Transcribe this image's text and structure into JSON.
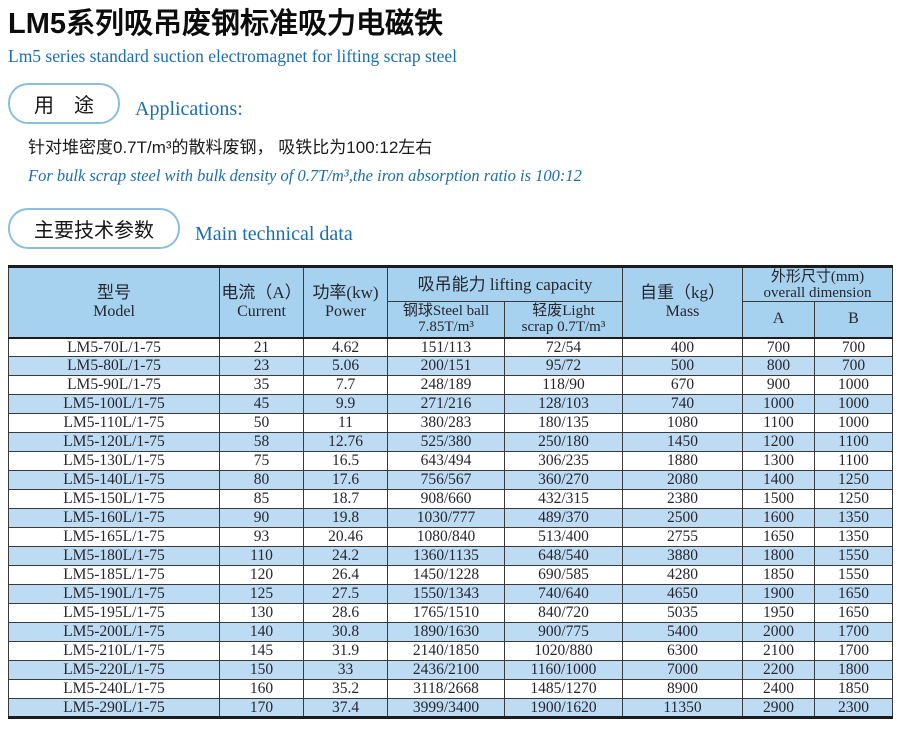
{
  "colors": {
    "accent_blue": "#1a6db6",
    "header_blue": "#a6d2ef",
    "row_alt_blue": "#bddcf4",
    "pill_border": "#8abfe0",
    "table_border": "#3a3a3a",
    "table_frame": "#1c1c1c",
    "text_dark": "#26262e"
  },
  "header": {
    "title_cn": "LM5系列吸吊废钢标准吸力电磁铁",
    "title_en": "Lm5 series standard suction electromagnet for lifting scrap steel"
  },
  "applications": {
    "pill_label": "用　途",
    "label_en": "Applications:",
    "body_cn": "针对堆密度0.7T/m³的散料废钢， 吸铁比为100:12左右",
    "body_en": "For bulk scrap steel with bulk density of 0.7T/m³,the iron absorption ratio is 100:12"
  },
  "tech_params": {
    "pill_label": "主要技术参数",
    "label_en": "Main technical data"
  },
  "table": {
    "header": {
      "model_cn": "型号",
      "model_en": "Model",
      "current_cn": "电流（A）",
      "current_en": "Current",
      "power_cn": "功率(kw)",
      "power_en": "Power",
      "lifting_capacity": "吸吊能力 lifting capacity",
      "steel_ball_line1": "钢球Steel ball",
      "steel_ball_line2": "7.85T/m³",
      "light_scrap_line1": "轻废Light",
      "light_scrap_line2": "scrap 0.7T/m³",
      "mass_cn": "自重（kg）",
      "mass_en": "Mass",
      "dimension_line1": "外形尺寸(mm)",
      "dimension_line2": "overall dimension",
      "col_a": "A",
      "col_b": "B"
    },
    "rows": [
      [
        "LM5-70L/1-75",
        "21",
        "4.62",
        "151/113",
        "72/54",
        "400",
        "700",
        "700"
      ],
      [
        "LM5-80L/1-75",
        "23",
        "5.06",
        "200/151",
        "95/72",
        "500",
        "800",
        "700"
      ],
      [
        "LM5-90L/1-75",
        "35",
        "7.7",
        "248/189",
        "118/90",
        "670",
        "900",
        "1000"
      ],
      [
        "LM5-100L/1-75",
        "45",
        "9.9",
        "271/216",
        "128/103",
        "740",
        "1000",
        "1000"
      ],
      [
        "LM5-110L/1-75",
        "50",
        "11",
        "380/283",
        "180/135",
        "1080",
        "1100",
        "1000"
      ],
      [
        "LM5-120L/1-75",
        "58",
        "12.76",
        "525/380",
        "250/180",
        "1450",
        "1200",
        "1100"
      ],
      [
        "LM5-130L/1-75",
        "75",
        "16.5",
        "643/494",
        "306/235",
        "1880",
        "1300",
        "1100"
      ],
      [
        "LM5-140L/1-75",
        "80",
        "17.6",
        "756/567",
        "360/270",
        "2080",
        "1400",
        "1250"
      ],
      [
        "LM5-150L/1-75",
        "85",
        "18.7",
        "908/660",
        "432/315",
        "2380",
        "1500",
        "1250"
      ],
      [
        "LM5-160L/1-75",
        "90",
        "19.8",
        "1030/777",
        "489/370",
        "2500",
        "1600",
        "1350"
      ],
      [
        "LM5-165L/1-75",
        "93",
        "20.46",
        "1080/840",
        "513/400",
        "2755",
        "1650",
        "1350"
      ],
      [
        "LM5-180L/1-75",
        "110",
        "24.2",
        "1360/1135",
        "648/540",
        "3880",
        "1800",
        "1550"
      ],
      [
        "LM5-185L/1-75",
        "120",
        "26.4",
        "1450/1228",
        "690/585",
        "4280",
        "1850",
        "1550"
      ],
      [
        "LM5-190L/1-75",
        "125",
        "27.5",
        "1550/1343",
        "740/640",
        "4650",
        "1900",
        "1650"
      ],
      [
        "LM5-195L/1-75",
        "130",
        "28.6",
        "1765/1510",
        "840/720",
        "5035",
        "1950",
        "1650"
      ],
      [
        "LM5-200L/1-75",
        "140",
        "30.8",
        "1890/1630",
        "900/775",
        "5400",
        "2000",
        "1700"
      ],
      [
        "LM5-210L/1-75",
        "145",
        "31.9",
        "2140/1850",
        "1020/880",
        "6300",
        "2100",
        "1700"
      ],
      [
        "LM5-220L/1-75",
        "150",
        "33",
        "2436/2100",
        "1160/1000",
        "7000",
        "2200",
        "1800"
      ],
      [
        "LM5-240L/1-75",
        "160",
        "35.2",
        "3118/2668",
        "1485/1270",
        "8900",
        "2400",
        "1850"
      ],
      [
        "LM5-290L/1-75",
        "170",
        "37.4",
        "3999/3400",
        "1900/1620",
        "11350",
        "2900",
        "2300"
      ]
    ]
  }
}
